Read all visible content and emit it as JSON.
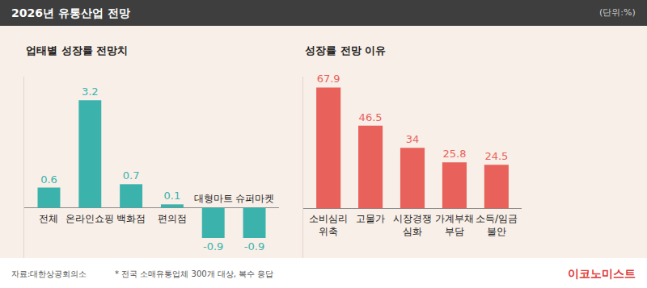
{
  "header": {
    "title": "2026년 유통산업 전망",
    "unit": "(단위:%)"
  },
  "chart_data": [
    {
      "type": "bar",
      "title": "업태별 성장률 전망치",
      "categories": [
        "전체",
        "온라인쇼핑",
        "백화점",
        "편의점",
        "대형마트",
        "슈퍼마켓"
      ],
      "values": [
        0.6,
        3.2,
        0.7,
        0.1,
        -0.9,
        -0.9
      ],
      "color": "#3bb3ac",
      "ylim": [
        -1.5,
        3.9
      ],
      "yticks": [
        0
      ],
      "grid": true,
      "data_labels": true,
      "tick_labels": false
    },
    {
      "type": "bar",
      "title": "성장률 전망 이유",
      "categories": [
        "소비심리\n위축",
        "고물가",
        "시장경쟁\n심화",
        "가계부채\n부담",
        "소득/임금\n불안"
      ],
      "values": [
        67.9,
        46.5,
        34,
        25.8,
        24.5
      ],
      "color": "#e8625b",
      "ylim": [
        -28,
        74
      ],
      "yticks": [
        0
      ],
      "grid": true,
      "data_labels": true,
      "tick_labels": false
    }
  ],
  "footer": {
    "source": "자료:대한상공회의소",
    "note": "* 전국 소매유통업체 300개 대상, 복수 응답",
    "brand": "이코노미스트"
  }
}
